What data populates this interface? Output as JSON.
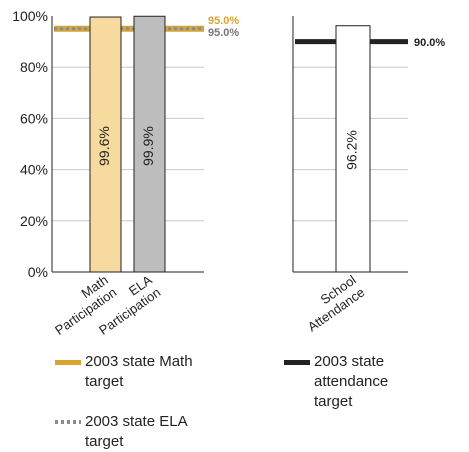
{
  "colors": {
    "math": "#F7DB9E",
    "ela": "#BDBDBD",
    "attendance": "#FFFFFF",
    "math_target": "#D9A530",
    "ela_target": "#8C8C8C",
    "attendance_target": "#222222"
  },
  "chart_data": [
    {
      "type": "bar",
      "categories": [
        "Math Participation",
        "ELA Participation"
      ],
      "values": [
        99.6,
        99.9
      ],
      "data_labels": [
        "99.6%",
        "99.9%"
      ],
      "ylim": [
        0,
        100
      ],
      "y_ticks": [
        "0%",
        "20%",
        "40%",
        "60%",
        "80%",
        "100%"
      ],
      "grid": true,
      "reference_lines": [
        {
          "name": "2003 state Math target",
          "value": 95.0,
          "label": "95.0%"
        },
        {
          "name": "2003 state ELA target",
          "value": 95.0,
          "label": "95.0%"
        }
      ]
    },
    {
      "type": "bar",
      "categories": [
        "School Attendance"
      ],
      "values": [
        96.2
      ],
      "data_labels": [
        "96.2%"
      ],
      "ylim": [
        0,
        100
      ],
      "grid": true,
      "reference_lines": [
        {
          "name": "2003 state attendance target",
          "value": 90.0,
          "label": "90.0%"
        }
      ]
    }
  ],
  "legend": {
    "math_target": "2003 state Math target",
    "ela_target": "2003 state ELA target",
    "attendance_target": "2003 state attendance target"
  }
}
